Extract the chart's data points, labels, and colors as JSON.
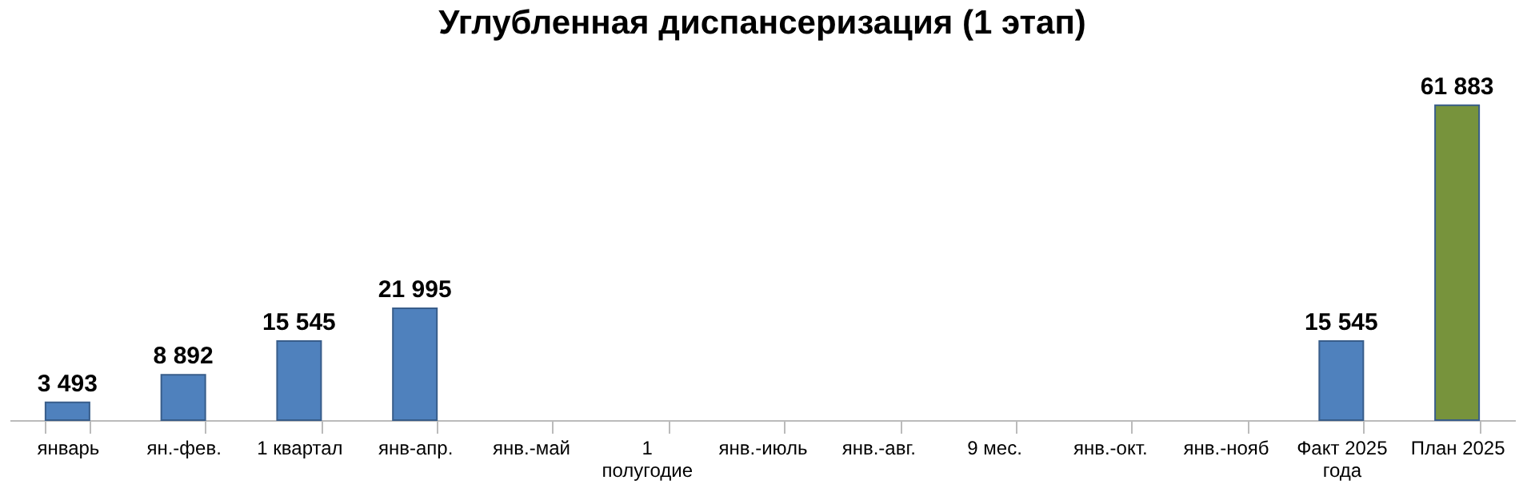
{
  "chart_data": {
    "type": "bar",
    "title": "Углубленная диспансеризация (1 этап)",
    "categories": [
      "январь",
      "ян.-фев.",
      "1 квартал",
      "янв-апр.",
      "янв.-май",
      "1 полугодие",
      "янв.-июль",
      "янв.-авг.",
      "9 мес.",
      "янв.-окт.",
      "янв.-нояб",
      "Факт 2025 года",
      "План 2025"
    ],
    "values": [
      3493,
      8892,
      15545,
      21995,
      null,
      null,
      null,
      null,
      null,
      null,
      null,
      15545,
      61883
    ],
    "colors": [
      "#4f81bd",
      "#4f81bd",
      "#4f81bd",
      "#4f81bd",
      "#4f81bd",
      "#4f81bd",
      "#4f81bd",
      "#4f81bd",
      "#4f81bd",
      "#4f81bd",
      "#4f81bd",
      "#4f81bd",
      "#77933c"
    ],
    "value_labels": [
      "3 493",
      "8 892",
      "15 545",
      "21 995",
      null,
      null,
      null,
      null,
      null,
      null,
      null,
      "15 545",
      "61 883"
    ],
    "grid": false
  }
}
